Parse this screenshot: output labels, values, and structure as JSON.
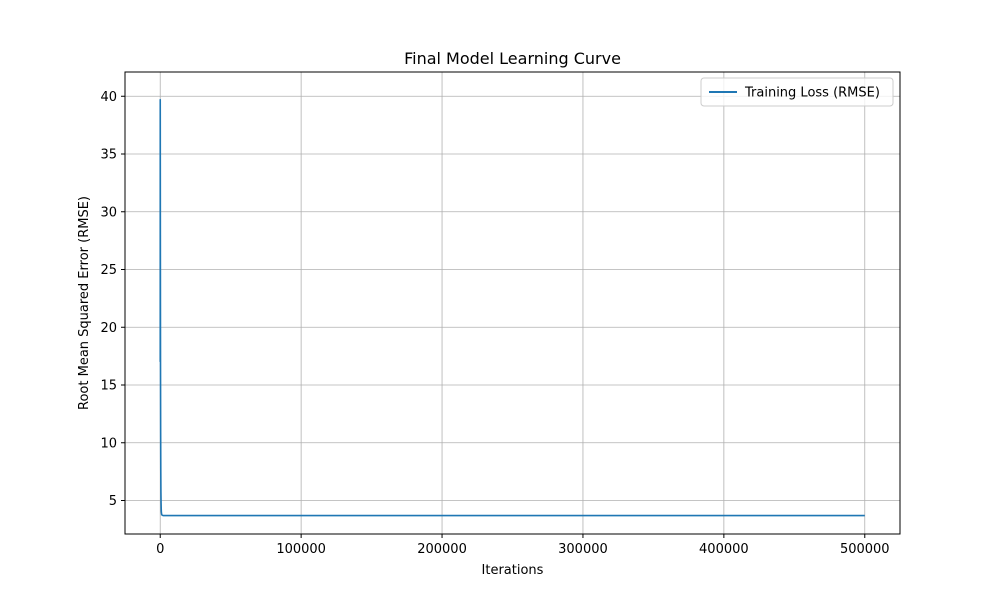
{
  "chart_data": {
    "type": "line",
    "title": "Final Model Learning Curve",
    "xlabel": "Iterations",
    "ylabel": "Root Mean Squared Error (RMSE)",
    "xlim": [
      -25000,
      525000
    ],
    "ylim": [
      2.1,
      42.1
    ],
    "xticks": [
      0,
      100000,
      200000,
      300000,
      400000,
      500000
    ],
    "yticks": [
      5,
      10,
      15,
      20,
      25,
      30,
      35,
      40
    ],
    "grid": true,
    "legend_position": "top-right",
    "series": [
      {
        "name": "Training Loss (RMSE)",
        "color": "#1f77b4",
        "x": [
          0,
          10,
          30,
          60,
          100,
          150,
          200,
          300,
          400,
          500,
          600,
          700,
          800,
          1000,
          1200,
          1500,
          2000,
          5000,
          10000,
          50000,
          100000,
          200000,
          300000,
          400000,
          500000
        ],
        "y": [
          17.0,
          39.7,
          38.5,
          34.0,
          28.0,
          22.0,
          17.0,
          11.0,
          7.5,
          5.7,
          4.8,
          4.3,
          4.0,
          3.8,
          3.75,
          3.72,
          3.7,
          3.7,
          3.7,
          3.7,
          3.7,
          3.7,
          3.7,
          3.7,
          3.7
        ]
      }
    ]
  }
}
